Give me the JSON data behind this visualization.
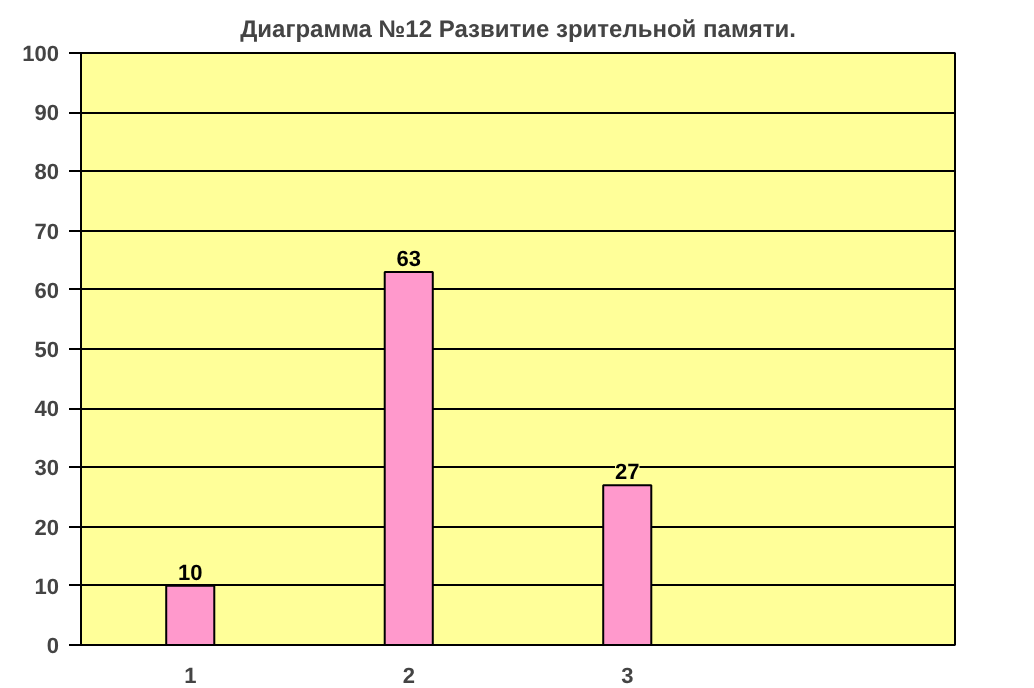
{
  "chart_data": {
    "type": "bar",
    "title": "Диаграмма №12 Развитие зрительной памяти.",
    "categories": [
      "1",
      "2",
      "3",
      null
    ],
    "values": [
      10,
      63,
      27,
      null
    ],
    "color": "#ff99cc",
    "ylim": [
      0,
      100
    ],
    "yticks": [
      0,
      10,
      20,
      30,
      40,
      50,
      60,
      70,
      80,
      90,
      100
    ],
    "grid": "y",
    "data_labels": true
  }
}
